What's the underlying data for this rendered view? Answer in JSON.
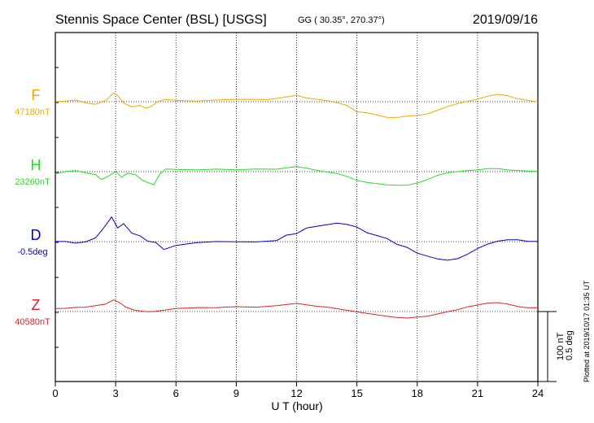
{
  "title": "Stennis Space Center (BSL)  [USGS]",
  "coords": "GG ( 30.35°, 270.37°)",
  "date": "2019/09/16",
  "footer_note": "Plotted at 2019/10/17 01:35 UT",
  "scale_label_1": "100 nT",
  "scale_label_2": "0.5 deg",
  "chart_data": {
    "type": "line",
    "xlabel": "U T (hour)",
    "xlim": [
      0,
      24
    ],
    "xticks": [
      "0",
      "3",
      "6",
      "9",
      "12",
      "15",
      "18",
      "21",
      "24"
    ],
    "grid": true,
    "series": [
      {
        "name": "F",
        "baseline_label": "47180nT",
        "color": "#f0a800",
        "unit": "nT",
        "baseline": 47180,
        "x": [
          0,
          0.5,
          1,
          1.5,
          2,
          2.5,
          2.9,
          3.1,
          3.4,
          3.8,
          4.2,
          4.5,
          4.8,
          5.1,
          5.5,
          6,
          7,
          8,
          9,
          10,
          10.5,
          11,
          12,
          12.5,
          13,
          13.5,
          14,
          14.5,
          15,
          15.5,
          16,
          16.5,
          17,
          17.5,
          18,
          18.5,
          19,
          19.5,
          20,
          20.5,
          21,
          21.5,
          22,
          22.5,
          23,
          23.5,
          24
        ],
        "values": [
          0,
          1,
          3,
          -1,
          -3,
          2,
          13,
          9,
          -2,
          -8,
          -6,
          -10,
          -7,
          0,
          3,
          2,
          1,
          3,
          4,
          4,
          3,
          5,
          9,
          5,
          3,
          1,
          -2,
          -6,
          -15,
          -16,
          -19,
          -22,
          -22,
          -20,
          -19,
          -17,
          -12,
          -7,
          -3,
          0,
          3,
          7,
          10,
          8,
          4,
          2,
          0
        ]
      },
      {
        "name": "H",
        "baseline_label": "23260nT",
        "color": "#22dd22",
        "unit": "nT",
        "baseline": 23260,
        "x": [
          0,
          0.5,
          1,
          1.5,
          2,
          2.3,
          2.7,
          3,
          3.3,
          3.6,
          4,
          4.3,
          4.6,
          4.9,
          5.2,
          5.5,
          6,
          7,
          8,
          9,
          10,
          11,
          12,
          12.5,
          13,
          13.5,
          14,
          14.5,
          15,
          15.5,
          16,
          16.5,
          17,
          17.5,
          18,
          18.5,
          19,
          19.5,
          20,
          20.5,
          21,
          21.5,
          22,
          22.5,
          23,
          23.5,
          24
        ],
        "values": [
          -3,
          0,
          1,
          -2,
          -5,
          -12,
          -6,
          0,
          -8,
          -2,
          -4,
          -11,
          -15,
          -18,
          -3,
          4,
          3,
          2,
          3,
          2,
          3,
          3,
          7,
          5,
          2,
          0,
          -2,
          -6,
          -12,
          -15,
          -17,
          -19,
          -20,
          -20,
          -17,
          -12,
          -6,
          -2,
          0,
          2,
          3,
          5,
          5,
          3,
          2,
          1,
          0
        ]
      },
      {
        "name": "D",
        "baseline_label": "-0.5deg",
        "color": "#0000cc",
        "unit": "deg",
        "baseline": -0.5,
        "x": [
          0,
          0.5,
          1,
          1.5,
          2,
          2.4,
          2.8,
          3.1,
          3.4,
          3.8,
          4.2,
          4.6,
          5,
          5.4,
          6,
          7,
          8,
          9,
          10,
          11,
          11.5,
          12,
          12.5,
          13,
          13.5,
          14,
          14.5,
          15,
          15.5,
          16,
          16.5,
          17,
          17.5,
          18,
          18.5,
          19,
          19.5,
          20,
          20.5,
          21,
          21.5,
          22,
          22.5,
          23,
          23.5,
          24
        ],
        "values": [
          0,
          0,
          -0.01,
          0,
          0.03,
          0.1,
          0.18,
          0.1,
          0.13,
          0.06,
          0.04,
          0,
          -0.01,
          -0.06,
          -0.03,
          -0.01,
          0,
          0,
          0,
          0.01,
          0.05,
          0.06,
          0.1,
          0.11,
          0.12,
          0.13,
          0.12,
          0.1,
          0.06,
          0.04,
          0.02,
          -0.02,
          -0.04,
          -0.08,
          -0.1,
          -0.12,
          -0.13,
          -0.12,
          -0.09,
          -0.05,
          -0.02,
          0,
          0.01,
          0.01,
          0,
          0
        ]
      },
      {
        "name": "Z",
        "baseline_label": "40580nT",
        "color": "#dd2222",
        "unit": "nT",
        "baseline": 40580,
        "x": [
          0,
          0.5,
          1,
          1.5,
          2,
          2.5,
          2.9,
          3.2,
          3.5,
          3.9,
          4.2,
          4.6,
          5,
          5.5,
          6,
          7,
          8,
          9,
          10,
          11,
          12,
          12.5,
          13,
          13.5,
          14,
          14.5,
          15,
          15.5,
          16,
          16.5,
          17,
          17.5,
          18,
          18.5,
          19,
          19.5,
          20,
          20.5,
          21,
          21.5,
          22,
          22.5,
          23,
          23.5,
          24
        ],
        "values": [
          5,
          5,
          6,
          6,
          8,
          10,
          16,
          12,
          6,
          2,
          1,
          0,
          1,
          3,
          5,
          6,
          6,
          7,
          6,
          8,
          11,
          9,
          7,
          6,
          4,
          2,
          0,
          -2,
          -4,
          -6,
          -8,
          -9,
          -8,
          -7,
          -4,
          -1,
          2,
          6,
          9,
          12,
          13,
          11,
          8,
          6,
          6
        ]
      }
    ]
  }
}
